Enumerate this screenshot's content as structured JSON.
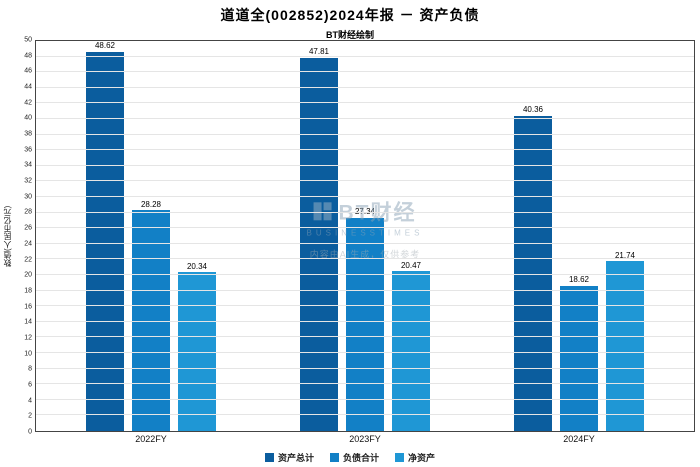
{
  "title": "道道全(002852)2024年报 － 资产负债",
  "subtitle": "BT财经绘制",
  "watermark": {
    "logo_text": "BT财经",
    "logo_sub": "BUSINESSTIMES",
    "notice": "内容由AI生成，仅供参考"
  },
  "chart_data": {
    "type": "bar",
    "title": "道道全(002852)2024年报 － 资产负债",
    "subtitle": "BT财经绘制",
    "xlabel": "",
    "ylabel": "数值(人民币亿元)",
    "categories": [
      "2022FY",
      "2023FY",
      "2024FY"
    ],
    "series": [
      {
        "name": "资产总计",
        "color": "#0b5d9e",
        "values": [
          48.62,
          47.81,
          40.36
        ]
      },
      {
        "name": "负债合计",
        "color": "#1280c6",
        "values": [
          28.28,
          27.34,
          18.62
        ]
      },
      {
        "name": "净资产",
        "color": "#1f97d5",
        "values": [
          20.34,
          20.47,
          21.74
        ]
      }
    ],
    "ylim": [
      0,
      50
    ],
    "ytick_step": 2,
    "grid": true,
    "legend_position": "bottom"
  }
}
